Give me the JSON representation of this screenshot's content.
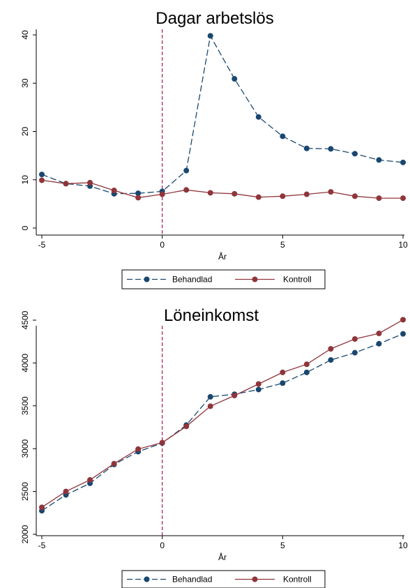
{
  "colors": {
    "behandlad": "#1a476f",
    "kontroll": "#90353b",
    "refline": "#a0185a",
    "axis": "#000000"
  },
  "chart_data": [
    {
      "type": "line",
      "title": "Dagar arbetslös",
      "xlabel": "År",
      "ylabel": "",
      "xlim": [
        -5,
        10
      ],
      "ylim": [
        0,
        40
      ],
      "xticks": [
        -5,
        0,
        5,
        10
      ],
      "yticks": [
        0,
        10,
        20,
        30,
        40
      ],
      "x": [
        -5,
        -4,
        -3,
        -2,
        -1,
        0,
        1,
        2,
        3,
        4,
        5,
        6,
        7,
        8,
        9,
        10
      ],
      "vline": 0,
      "grid": false,
      "legend_position": "bottom",
      "series": [
        {
          "name": "Behandlad",
          "style": "dash",
          "values": [
            11.1,
            9.2,
            8.7,
            7.1,
            7.2,
            7.6,
            11.9,
            39.8,
            30.9,
            23.0,
            19.0,
            16.5,
            16.4,
            15.4,
            14.1,
            13.6
          ]
        },
        {
          "name": "Kontroll",
          "style": "solid",
          "values": [
            9.9,
            9.2,
            9.4,
            7.8,
            6.3,
            7.0,
            7.9,
            7.3,
            7.1,
            6.4,
            6.6,
            7.0,
            7.5,
            6.6,
            6.2,
            6.2
          ]
        }
      ]
    },
    {
      "type": "line",
      "title": "Löneinkomst",
      "xlabel": "År",
      "ylabel": "",
      "xlim": [
        -5,
        10
      ],
      "ylim": [
        2000,
        4500
      ],
      "xticks": [
        -5,
        0,
        5,
        10
      ],
      "yticks": [
        2000,
        2500,
        3000,
        3500,
        4000,
        4500
      ],
      "x": [
        -5,
        -4,
        -3,
        -2,
        -1,
        0,
        1,
        2,
        3,
        4,
        5,
        6,
        7,
        8,
        9,
        10
      ],
      "vline": 0,
      "grid": false,
      "legend_position": "bottom",
      "series": [
        {
          "name": "Behandlad",
          "style": "dash",
          "values": [
            2275,
            2460,
            2595,
            2815,
            2965,
            3065,
            3275,
            3605,
            3635,
            3690,
            3765,
            3890,
            4035,
            4120,
            4225,
            4340
          ]
        },
        {
          "name": "Kontroll",
          "style": "solid",
          "values": [
            2315,
            2500,
            2635,
            2825,
            2995,
            3070,
            3260,
            3495,
            3620,
            3755,
            3890,
            3985,
            4165,
            4280,
            4345,
            4505
          ]
        }
      ]
    }
  ]
}
